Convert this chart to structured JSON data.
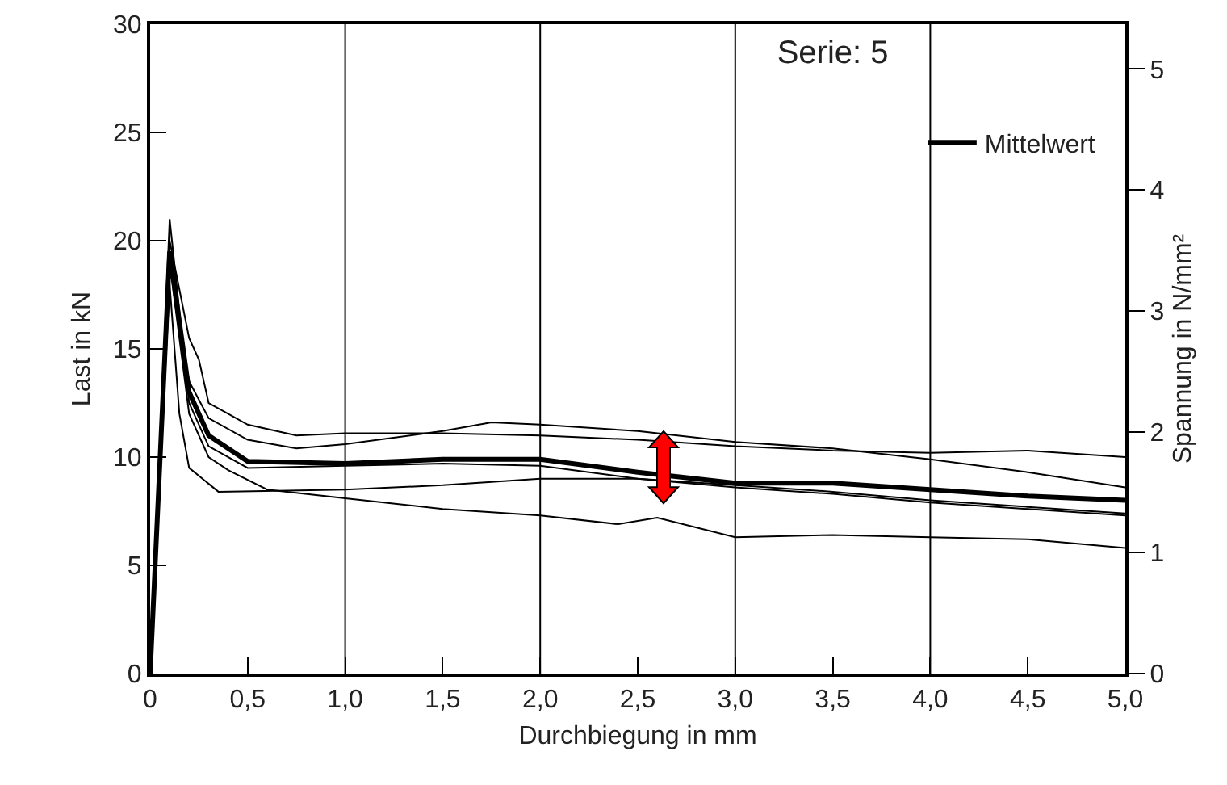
{
  "chart_data": {
    "type": "line",
    "title": "Serie: 5",
    "xlabel": "Durchbiegung in mm",
    "ylabel": "Last in kN",
    "y2label": "Spannung in N/mm²",
    "xlim": [
      0,
      5
    ],
    "xticks": [
      0,
      {
        "value": 0.5,
        "label": "0,5"
      },
      {
        "value": 1,
        "label": "1,0"
      },
      {
        "value": 1.5,
        "label": "1,5"
      },
      {
        "value": 2,
        "label": "2,0"
      },
      {
        "value": 2.5,
        "label": "2,5"
      },
      {
        "value": 3,
        "label": "3,0"
      },
      {
        "value": 3.5,
        "label": "3,5"
      },
      {
        "value": 4,
        "label": "4,0"
      },
      {
        "value": 4.5,
        "label": "4,5"
      },
      {
        "value": 5,
        "label": "5,0"
      }
    ],
    "ylim": [
      0,
      30
    ],
    "yticks": [
      0,
      5,
      10,
      15,
      20,
      25,
      30
    ],
    "y2lim": [
      0,
      5.37
    ],
    "y2ticks": [
      0,
      1,
      2,
      3,
      4,
      5
    ],
    "grid": false,
    "legend": "top right",
    "marker": "none",
    "line_style": "solid",
    "ref_lines": [
      {
        "axis": "x",
        "value": 1,
        "color": "#000000"
      },
      {
        "axis": "x",
        "value": 2,
        "color": "#000000"
      },
      {
        "axis": "x",
        "value": 3,
        "color": "#000000"
      },
      {
        "axis": "x",
        "value": 4,
        "color": "#000000"
      }
    ],
    "series": [
      {
        "color": "#000000",
        "x": [
          0,
          0.1,
          0.2,
          0.25,
          0.3,
          0.5,
          0.75,
          1,
          1.5,
          2,
          2.5,
          3,
          3.5,
          4,
          4.5,
          5
        ],
        "values": [
          0,
          20,
          15.5,
          14.5,
          12.5,
          11.5,
          11,
          11.1,
          11.1,
          11,
          10.8,
          10.5,
          10.3,
          10.2,
          10.3,
          10
        ]
      },
      {
        "color": "#000000",
        "x": [
          0,
          0.1,
          0.2,
          0.3,
          0.5,
          0.75,
          1,
          1.5,
          1.75,
          2,
          2.5,
          3,
          3.5,
          4,
          4.5,
          5
        ],
        "values": [
          0,
          19,
          13.5,
          11.8,
          10.8,
          10.4,
          10.6,
          11.2,
          11.6,
          11.5,
          11.2,
          10.7,
          10.4,
          9.9,
          9.3,
          8.6
        ]
      },
      {
        "color": "#000000",
        "x": [
          0,
          0.1,
          0.15,
          0.2,
          0.35,
          1,
          1.5,
          2,
          2.5,
          3,
          3.5,
          4,
          4.5,
          5
        ],
        "values": [
          0,
          18,
          12,
          9.5,
          8.4,
          8.5,
          8.7,
          9,
          9,
          8.7,
          8.4,
          8,
          7.7,
          7.4
        ]
      },
      {
        "color": "#000000",
        "x": [
          0,
          0.1,
          0.2,
          0.3,
          0.4,
          0.6,
          1,
          1.5,
          2,
          2.4,
          2.6,
          3,
          3.5,
          4,
          4.5,
          5
        ],
        "values": [
          0,
          19,
          12,
          10,
          9.4,
          8.5,
          8.1,
          7.6,
          7.3,
          6.9,
          7.2,
          6.3,
          6.4,
          6.3,
          6.2,
          5.8
        ]
      },
      {
        "color": "#000000",
        "x": [
          0,
          0.1,
          0.2,
          0.3,
          0.5,
          1,
          1.5,
          2,
          2.5,
          3,
          3.5,
          4,
          4.5,
          5
        ],
        "values": [
          0,
          21,
          12.5,
          10.5,
          9.5,
          9.6,
          9.7,
          9.6,
          9,
          8.6,
          8.3,
          7.9,
          7.6,
          7.3
        ]
      },
      {
        "name": "Mittelwert",
        "color": "#000000",
        "x": [
          0,
          0.1,
          0.2,
          0.3,
          0.5,
          1,
          1.5,
          2,
          2.5,
          3,
          3.5,
          4,
          4.5,
          5
        ],
        "values": [
          0,
          19.5,
          13,
          11,
          9.8,
          9.7,
          9.9,
          9.9,
          9.3,
          8.8,
          8.8,
          8.5,
          8.2,
          8
        ]
      }
    ]
  }
}
